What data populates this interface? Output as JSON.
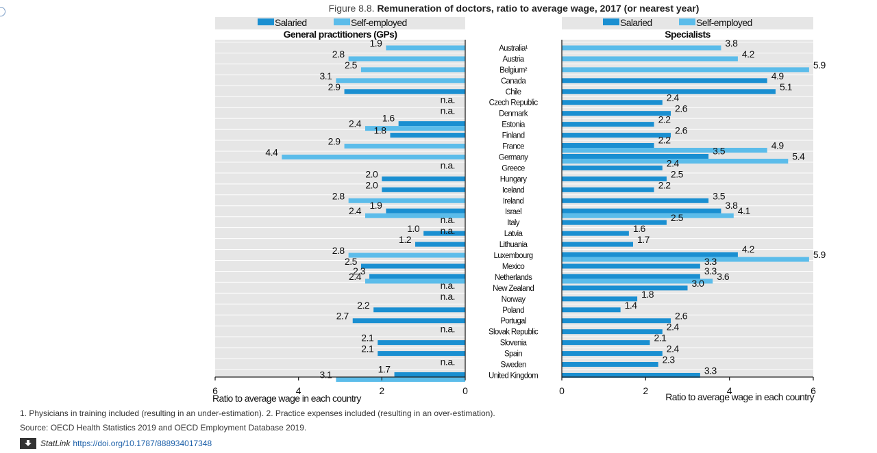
{
  "figure": {
    "label": "Figure 8.8.",
    "title": "Remuneration of doctors, ratio to average wage, 2017 (or nearest year)"
  },
  "colors": {
    "salaried": "#1a8fd1",
    "self_employed": "#5bbcea",
    "panel_bg": "#e6e6e6",
    "grid": "#ffffff"
  },
  "chart_data": [
    {
      "type": "bar",
      "orientation": "horizontal",
      "direction": "reversed",
      "title": "General practitioners (GPs)",
      "xlabel": "Ratio to average wage in each country",
      "xlim": [
        0,
        6
      ],
      "x_ticks": [
        "6",
        "4",
        "2",
        "0"
      ],
      "legend": [
        "Salaried",
        "Self-employed"
      ],
      "legend_position": "top",
      "series": [
        {
          "name": "Salaried",
          "values": [
            null,
            null,
            null,
            null,
            2.9,
            null,
            null,
            1.6,
            1.8,
            null,
            null,
            null,
            2.0,
            2.0,
            null,
            1.9,
            null,
            1.0,
            1.2,
            null,
            2.5,
            2.3,
            null,
            null,
            2.2,
            2.7,
            null,
            2.1,
            2.1,
            null,
            1.7
          ]
        },
        {
          "name": "Self-employed",
          "values": [
            1.9,
            2.8,
            2.5,
            3.1,
            null,
            null,
            null,
            2.4,
            null,
            2.9,
            4.4,
            null,
            null,
            null,
            2.8,
            2.4,
            null,
            null,
            null,
            2.8,
            null,
            2.4,
            null,
            null,
            null,
            null,
            null,
            null,
            null,
            null,
            3.1
          ]
        }
      ],
      "na_label": "n.a.",
      "na_rows": [
        "Czech Republic",
        "Denmark",
        "Greece",
        "Italy",
        "Latvia",
        "New Zealand",
        "Norway",
        "Slovak Republic",
        "Sweden"
      ]
    },
    {
      "type": "bar",
      "orientation": "horizontal",
      "title": "Specialists",
      "xlabel": "Ratio to average wage in each country",
      "xlim": [
        0,
        6
      ],
      "x_ticks": [
        "0",
        "2",
        "4",
        "6"
      ],
      "legend": [
        "Salaried",
        "Self-employed"
      ],
      "legend_position": "top",
      "series": [
        {
          "name": "Salaried",
          "values": [
            null,
            null,
            null,
            4.9,
            5.1,
            2.4,
            2.6,
            2.2,
            2.6,
            2.2,
            3.5,
            2.4,
            2.5,
            2.2,
            3.5,
            3.8,
            2.5,
            1.6,
            1.7,
            4.2,
            3.3,
            3.3,
            3.0,
            1.8,
            1.4,
            2.6,
            2.4,
            2.1,
            2.4,
            2.3,
            3.3
          ]
        },
        {
          "name": "Self-employed",
          "values": [
            3.8,
            4.2,
            5.9,
            null,
            null,
            null,
            null,
            null,
            null,
            4.9,
            5.4,
            null,
            null,
            null,
            null,
            4.1,
            null,
            null,
            null,
            5.9,
            null,
            3.6,
            null,
            null,
            null,
            null,
            null,
            null,
            null,
            null,
            null
          ]
        }
      ]
    }
  ],
  "countries": [
    "Australia¹",
    "Austria",
    "Belgium²",
    "Canada",
    "Chile",
    "Czech Republic",
    "Denmark",
    "Estonia",
    "Finland",
    "France",
    "Germany",
    "Greece",
    "Hungary",
    "Iceland",
    "Ireland",
    "Israel",
    "Italy",
    "Latvia",
    "Lithuania",
    "Luxembourg",
    "Mexico",
    "Netherlands",
    "New Zealand",
    "Norway",
    "Poland",
    "Portugal",
    "Slovak Republic",
    "Slovenia",
    "Spain",
    "Sweden",
    "United Kingdom"
  ],
  "notes": {
    "footnote": "1. Physicians in training included (resulting in an under-estimation). 2. Practice expenses included (resulting in an over-estimation).",
    "source": "Source: OECD Health Statistics 2019 and OECD Employment Database 2019.",
    "statlink_label": "StatLink",
    "statlink_url": "https://doi.org/10.1787/888934017348"
  }
}
